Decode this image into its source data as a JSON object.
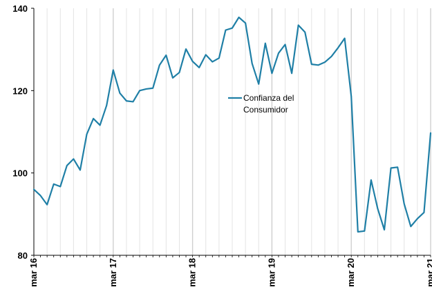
{
  "chart_data": {
    "type": "line",
    "title": "",
    "xlabel": "",
    "ylabel": "",
    "ylim": [
      80,
      140
    ],
    "yticks": [
      80,
      100,
      120,
      140
    ],
    "grid": {
      "horizontal": false,
      "vertical": true
    },
    "legend_position": "center",
    "x_tick_labels": [
      {
        "label": "mar 16",
        "index": 0
      },
      {
        "label": "mar 17",
        "index": 12
      },
      {
        "label": "mar 18",
        "index": 24
      },
      {
        "label": "mar 19",
        "index": 36
      },
      {
        "label": "mar 20",
        "index": 48
      },
      {
        "label": "mar 21",
        "index": 60
      }
    ],
    "x": [
      "mar 16",
      "abr 16",
      "may 16",
      "jun 16",
      "jul 16",
      "ago 16",
      "sep 16",
      "oct 16",
      "nov 16",
      "dic 16",
      "ene 17",
      "feb 17",
      "mar 17",
      "abr 17",
      "may 17",
      "jun 17",
      "jul 17",
      "ago 17",
      "sep 17",
      "oct 17",
      "nov 17",
      "dic 17",
      "ene 18",
      "feb 18",
      "mar 18",
      "abr 18",
      "may 18",
      "jun 18",
      "jul 18",
      "ago 18",
      "sep 18",
      "oct 18",
      "nov 18",
      "dic 18",
      "ene 19",
      "feb 19",
      "mar 19",
      "abr 19",
      "may 19",
      "jun 19",
      "jul 19",
      "ago 19",
      "sep 19",
      "oct 19",
      "nov 19",
      "dic 19",
      "ene 20",
      "feb 20",
      "mar 20",
      "abr 20",
      "may 20",
      "jun 20",
      "jul 20",
      "ago 20",
      "sep 20",
      "oct 20",
      "nov 20",
      "dic 20",
      "ene 21",
      "feb 21",
      "mar 21"
    ],
    "series": [
      {
        "name": "Confianza del Consumidor",
        "color": "#1f7fa6",
        "values": [
          96.0,
          94.5,
          92.3,
          97.3,
          96.7,
          101.8,
          103.4,
          100.7,
          109.4,
          113.2,
          111.6,
          116.4,
          125.0,
          119.4,
          117.5,
          117.3,
          120.0,
          120.4,
          120.6,
          126.2,
          128.6,
          123.1,
          124.4,
          130.1,
          127.1,
          125.6,
          128.7,
          127.0,
          127.9,
          134.7,
          135.2,
          137.8,
          136.4,
          126.6,
          121.6,
          131.5,
          124.2,
          129.1,
          131.2,
          124.2,
          135.9,
          134.2,
          126.4,
          126.2,
          126.9,
          128.3,
          130.4,
          132.7,
          118.6,
          85.7,
          85.9,
          98.3,
          91.3,
          86.2,
          101.2,
          101.4,
          92.5,
          87.0,
          88.9,
          90.4,
          109.7
        ]
      }
    ]
  }
}
